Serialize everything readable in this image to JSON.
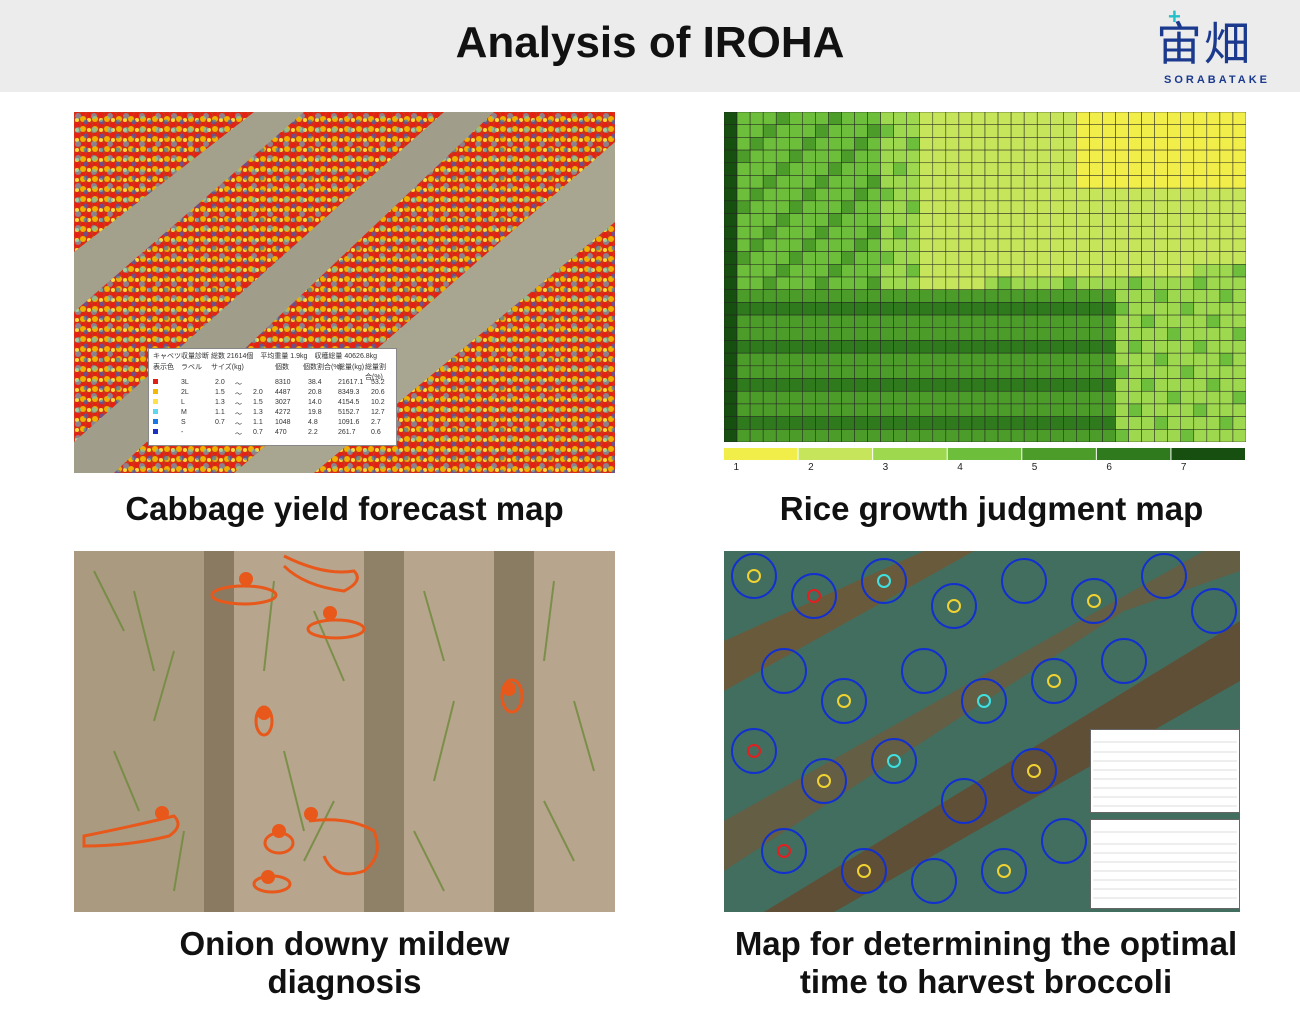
{
  "header": {
    "title": "Analysis of IROHA",
    "logo_kanji": "宙畑",
    "logo_sub": "SORABATAKE"
  },
  "panels": [
    {
      "caption": "Cabbage yield forecast map",
      "table": {
        "title": "キャベツ収量診断 総数 21614個　平均重量 1.9kg　収穫総量 40626.8kg",
        "headers": [
          "表示色",
          "ラベル",
          "サイズ(kg)",
          "個数",
          "個数割合(%)",
          "総量(kg)",
          "総量割合(%)"
        ],
        "rows": [
          {
            "label": "3L",
            "min": "2.0",
            "max": "",
            "count": "8310",
            "pct": "38.4",
            "total": "21617.1",
            "tpct": "53.2",
            "color": "#e21d12"
          },
          {
            "label": "2L",
            "min": "1.5",
            "max": "2.0",
            "count": "4487",
            "pct": "20.8",
            "total": "8349.3",
            "tpct": "20.6",
            "color": "#f5b800"
          },
          {
            "label": "L",
            "min": "1.3",
            "max": "1.5",
            "count": "3027",
            "pct": "14.0",
            "total": "4154.5",
            "tpct": "10.2",
            "color": "#ffe14a"
          },
          {
            "label": "M",
            "min": "1.1",
            "max": "1.3",
            "count": "4272",
            "pct": "19.8",
            "total": "5152.7",
            "tpct": "12.7",
            "color": "#5ed6f0"
          },
          {
            "label": "S",
            "min": "0.7",
            "max": "1.1",
            "count": "1048",
            "pct": "4.8",
            "total": "1091.6",
            "tpct": "2.7",
            "color": "#1877e6"
          },
          {
            "label": "-",
            "min": "",
            "max": "0.7",
            "count": "470",
            "pct": "2.2",
            "total": "261.7",
            "tpct": "0.6",
            "color": "#1b2fc0"
          }
        ]
      }
    },
    {
      "caption": "Rice growth judgment map",
      "legend": [
        "1",
        "2",
        "3",
        "4",
        "5",
        "6",
        "7"
      ],
      "legend_colors": [
        "#f1ee4a",
        "#c6e55a",
        "#9ed84f",
        "#6dbe3a",
        "#4c9c2a",
        "#2e7a1c",
        "#174f10"
      ]
    },
    {
      "caption_line1": "Onion downy mildew",
      "caption_line2": "diagnosis"
    },
    {
      "caption_line1": "Map for determining the optimal",
      "caption_line2": "time to harvest broccoli"
    }
  ]
}
